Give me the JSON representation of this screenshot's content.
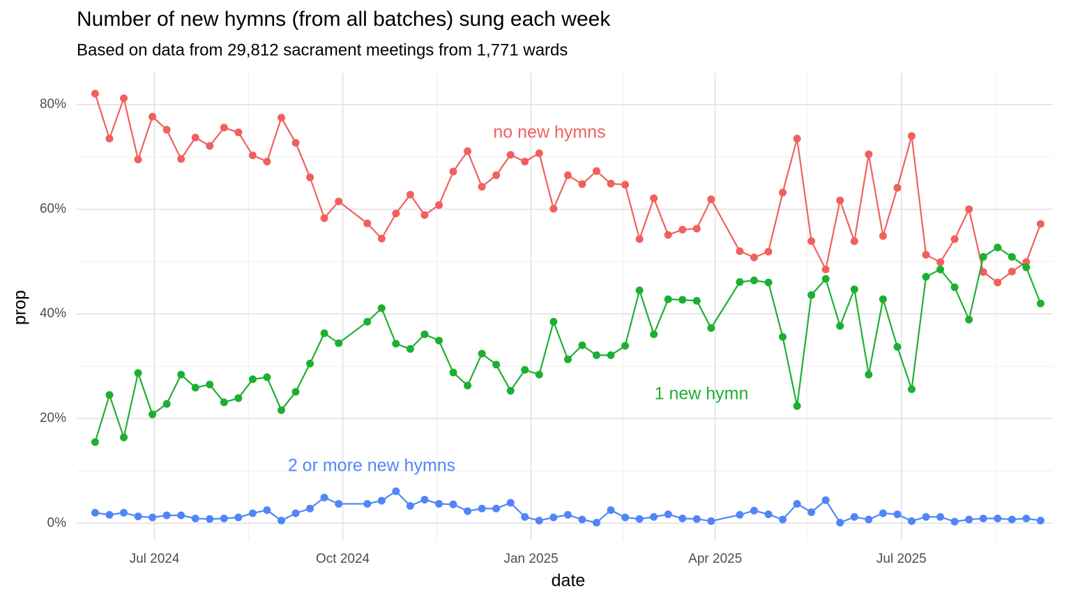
{
  "chart_data": {
    "type": "line",
    "title": "Number of new hymns (from all batches) sung each week",
    "subtitle": "Based on data from 29,812 sacrament meetings from 1,771 wards",
    "xlabel": "date",
    "ylabel": "prop",
    "x": [
      "2024-06-02",
      "2024-06-09",
      "2024-06-16",
      "2024-06-23",
      "2024-06-30",
      "2024-07-07",
      "2024-07-14",
      "2024-07-21",
      "2024-07-28",
      "2024-08-04",
      "2024-08-11",
      "2024-08-18",
      "2024-08-25",
      "2024-09-01",
      "2024-09-08",
      "2024-09-15",
      "2024-09-22",
      "2024-09-29",
      "2024-10-13",
      "2024-10-20",
      "2024-10-27",
      "2024-11-03",
      "2024-11-10",
      "2024-11-17",
      "2024-11-24",
      "2024-12-01",
      "2024-12-08",
      "2024-12-15",
      "2024-12-22",
      "2024-12-29",
      "2025-01-05",
      "2025-01-12",
      "2025-01-19",
      "2025-01-26",
      "2025-02-02",
      "2025-02-09",
      "2025-02-16",
      "2025-02-23",
      "2025-03-02",
      "2025-03-09",
      "2025-03-16",
      "2025-03-23",
      "2025-03-30",
      "2025-04-13",
      "2025-04-20",
      "2025-04-27",
      "2025-05-04",
      "2025-05-11",
      "2025-05-18",
      "2025-05-25",
      "2025-06-01",
      "2025-06-08",
      "2025-06-15",
      "2025-06-22",
      "2025-06-29",
      "2025-07-06",
      "2025-07-13",
      "2025-07-20",
      "2025-07-27",
      "2025-08-03",
      "2025-08-10",
      "2025-08-17",
      "2025-08-24",
      "2025-08-31",
      "2025-09-07"
    ],
    "series": [
      {
        "name": "no new hymns",
        "color": "#F0605D",
        "values": [
          82.1,
          73.5,
          81.2,
          69.5,
          77.7,
          75.2,
          69.6,
          73.7,
          72.1,
          75.6,
          74.7,
          70.3,
          69.1,
          77.5,
          72.7,
          66.1,
          58.3,
          61.5,
          57.3,
          54.4,
          59.2,
          62.8,
          58.9,
          60.8,
          67.2,
          71.1,
          64.3,
          66.5,
          70.4,
          69.1,
          70.7,
          60.1,
          66.5,
          64.8,
          67.3,
          64.9,
          64.7,
          54.3,
          62.1,
          55.1,
          56.1,
          56.3,
          61.9,
          52.0,
          50.8,
          51.9,
          63.2,
          73.5,
          53.9,
          48.5,
          61.7,
          53.9,
          70.5,
          54.9,
          64.1,
          74.0,
          51.3,
          49.9,
          54.3,
          60.0,
          48.0,
          46.0,
          48.1,
          49.9,
          57.2
        ]
      },
      {
        "name": "1 new hymn",
        "color": "#1DAF32",
        "values": [
          15.5,
          24.5,
          16.4,
          28.7,
          20.8,
          22.8,
          28.4,
          25.9,
          26.5,
          23.1,
          23.9,
          27.5,
          27.9,
          21.6,
          25.1,
          30.5,
          36.3,
          34.4,
          38.5,
          41.1,
          34.3,
          33.3,
          36.1,
          34.9,
          28.8,
          26.3,
          32.4,
          30.3,
          25.3,
          29.3,
          28.4,
          38.5,
          31.3,
          34.0,
          32.1,
          32.1,
          33.9,
          44.5,
          36.1,
          42.8,
          42.7,
          42.5,
          37.3,
          46.1,
          46.4,
          46.0,
          35.6,
          22.4,
          43.6,
          46.7,
          37.7,
          44.7,
          28.4,
          42.8,
          33.7,
          25.6,
          47.1,
          48.5,
          45.1,
          38.9,
          50.9,
          52.7,
          50.9,
          48.9,
          42.0
        ]
      },
      {
        "name": "2 or more new hymns",
        "color": "#4F86F7",
        "values": [
          2.0,
          1.6,
          2.0,
          1.3,
          1.1,
          1.5,
          1.5,
          0.9,
          0.8,
          0.9,
          1.1,
          1.9,
          2.5,
          0.5,
          1.9,
          2.8,
          4.9,
          3.7,
          3.7,
          4.3,
          6.1,
          3.3,
          4.5,
          3.7,
          3.6,
          2.3,
          2.8,
          2.8,
          3.9,
          1.2,
          0.5,
          1.1,
          1.6,
          0.7,
          0.1,
          2.5,
          1.1,
          0.8,
          1.2,
          1.7,
          0.9,
          0.8,
          0.4,
          1.6,
          2.4,
          1.7,
          0.7,
          3.7,
          2.1,
          4.4,
          0.1,
          1.2,
          0.7,
          1.9,
          1.7,
          0.4,
          1.2,
          1.2,
          0.3,
          0.7,
          0.9,
          0.9,
          0.7,
          0.9,
          0.5
        ]
      }
    ],
    "xlim": [
      "2024-05-24",
      "2025-09-13"
    ],
    "xticks": [
      {
        "value": "2024-07-01",
        "label": "Jul 2024"
      },
      {
        "value": "2024-10-01",
        "label": "Oct 2024"
      },
      {
        "value": "2025-01-01",
        "label": "Jan 2025"
      },
      {
        "value": "2025-04-01",
        "label": "Apr 2025"
      },
      {
        "value": "2025-07-01",
        "label": "Jul 2025"
      }
    ],
    "xminorticks": [
      "2024-08-16",
      "2024-11-16",
      "2025-02-15",
      "2025-05-16",
      "2025-08-16"
    ],
    "ylim": [
      -3.3,
      86
    ],
    "yticks": [
      {
        "value": 0,
        "label": "0%"
      },
      {
        "value": 20,
        "label": "20%"
      },
      {
        "value": 40,
        "label": "40%"
      },
      {
        "value": 60,
        "label": "60%"
      },
      {
        "value": 80,
        "label": "80%"
      }
    ],
    "yminorticks": [
      10,
      30,
      50,
      70
    ],
    "grid": true
  }
}
